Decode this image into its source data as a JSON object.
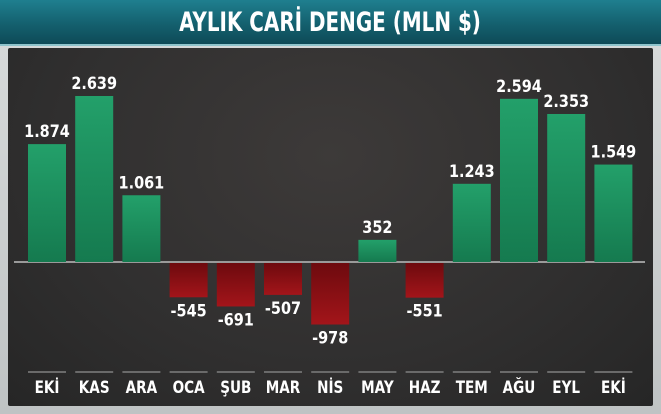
{
  "title": "AYLIK CARİ DENGE (MLN $)",
  "chart_data": {
    "type": "bar",
    "title": "AYLIK CARİ DENGE (MLN $)",
    "categories": [
      "EKİ",
      "KAS",
      "ARA",
      "OCA",
      "ŞUB",
      "MAR",
      "NİS",
      "MAY",
      "HAZ",
      "TEM",
      "AĞU",
      "EYL",
      "EKİ"
    ],
    "values": [
      1874,
      2639,
      1061,
      -545,
      -691,
      -507,
      -978,
      352,
      -551,
      1243,
      2594,
      2353,
      1549
    ],
    "value_labels": [
      "1.874",
      "2.639",
      "1.061",
      "-545",
      "-691",
      "-507",
      "-978",
      "352",
      "-551",
      "1.243",
      "2.594",
      "2.353",
      "1.549"
    ],
    "xlabel": "",
    "ylabel": "",
    "grid": false,
    "colors": {
      "positive": "#1f8a5c",
      "negative": "#8e1014",
      "baseline": "#9a9a9a"
    }
  }
}
